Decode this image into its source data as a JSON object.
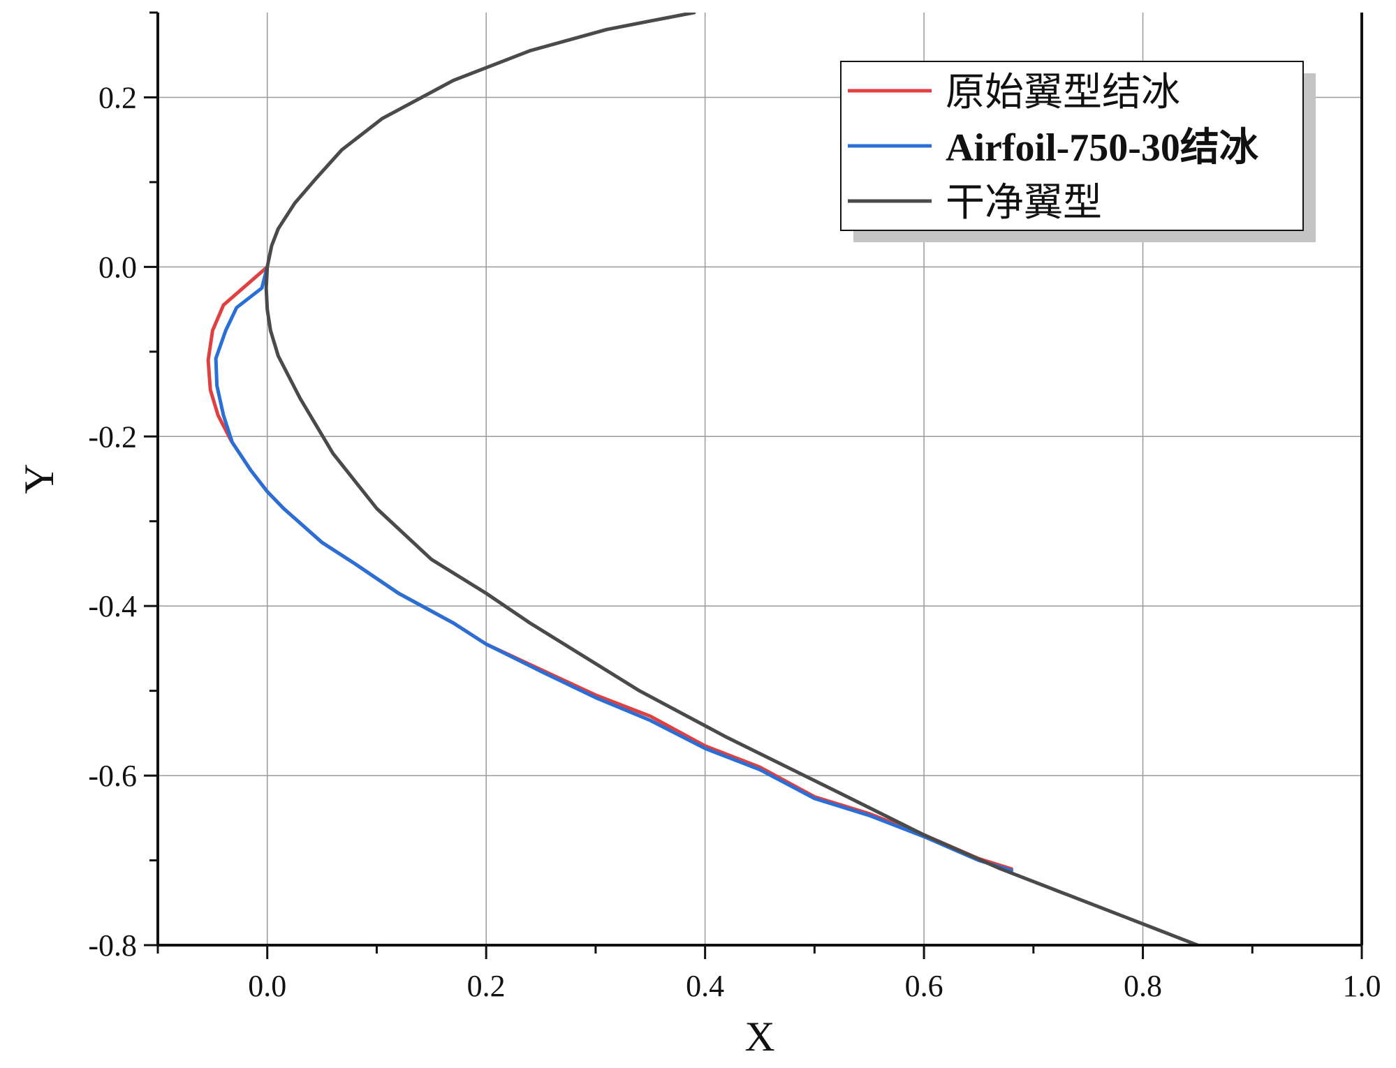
{
  "chart_data": {
    "type": "line",
    "xlabel": "X",
    "ylabel": "Y",
    "xlim": [
      -0.1,
      1.0
    ],
    "ylim": [
      -0.8,
      0.3
    ],
    "x_ticks": [
      0.0,
      0.2,
      0.4,
      0.6,
      0.8,
      1.0
    ],
    "x_tick_labels": [
      "0.0",
      "0.2",
      "0.4",
      "0.6",
      "0.8",
      "1.0"
    ],
    "y_ticks": [
      -0.8,
      -0.6,
      -0.4,
      -0.2,
      0.0,
      0.2
    ],
    "y_tick_labels": [
      "-0.8",
      "-0.6",
      "-0.4",
      "-0.2",
      "0.0",
      "0.2"
    ],
    "grid": true,
    "legend_position": "top-right",
    "series": [
      {
        "name": "原始翼型结冰",
        "color": "#e04040",
        "x": [
          0.0,
          -0.04,
          -0.05,
          -0.054,
          -0.052,
          -0.045,
          -0.033,
          -0.015,
          0.0,
          0.015,
          0.05,
          0.08,
          0.12,
          0.17,
          0.2,
          0.25,
          0.3,
          0.35,
          0.4,
          0.45,
          0.5,
          0.55,
          0.6,
          0.65,
          0.68
        ],
        "y": [
          0.0,
          -0.045,
          -0.075,
          -0.11,
          -0.145,
          -0.175,
          -0.205,
          -0.24,
          -0.265,
          -0.285,
          -0.325,
          -0.35,
          -0.385,
          -0.42,
          -0.445,
          -0.475,
          -0.505,
          -0.53,
          -0.565,
          -0.59,
          -0.625,
          -0.645,
          -0.67,
          -0.698,
          -0.71
        ]
      },
      {
        "name": "Airfoil-750-30结冰",
        "color": "#2a6fd6",
        "x": [
          0.0,
          -0.005,
          -0.028,
          -0.038,
          -0.047,
          -0.046,
          -0.04,
          -0.032,
          -0.015,
          0.0,
          0.015,
          0.05,
          0.08,
          0.12,
          0.17,
          0.2,
          0.25,
          0.3,
          0.35,
          0.4,
          0.45,
          0.5,
          0.55,
          0.6,
          0.65,
          0.68
        ],
        "y": [
          0.0,
          -0.025,
          -0.048,
          -0.075,
          -0.108,
          -0.14,
          -0.175,
          -0.207,
          -0.24,
          -0.265,
          -0.285,
          -0.325,
          -0.35,
          -0.385,
          -0.42,
          -0.445,
          -0.477,
          -0.508,
          -0.535,
          -0.568,
          -0.593,
          -0.627,
          -0.647,
          -0.672,
          -0.7,
          -0.712
        ]
      },
      {
        "name": "干净翼型",
        "color": "#4a4a4a",
        "x": [
          0.39,
          0.35,
          0.31,
          0.24,
          0.17,
          0.105,
          0.068,
          0.045,
          0.025,
          0.01,
          0.004,
          0.0,
          -0.001,
          0.0,
          0.003,
          0.01,
          0.03,
          0.06,
          0.1,
          0.15,
          0.2,
          0.24,
          0.34,
          0.42,
          0.53,
          0.6,
          0.67,
          0.73,
          0.8,
          0.86
        ],
        "y": [
          0.3,
          0.29,
          0.28,
          0.255,
          0.22,
          0.175,
          0.138,
          0.105,
          0.075,
          0.045,
          0.025,
          0.0,
          -0.025,
          -0.05,
          -0.075,
          -0.105,
          -0.155,
          -0.22,
          -0.285,
          -0.345,
          -0.385,
          -0.42,
          -0.5,
          -0.555,
          -0.625,
          -0.67,
          -0.71,
          -0.74,
          -0.775,
          -0.805
        ]
      }
    ]
  }
}
